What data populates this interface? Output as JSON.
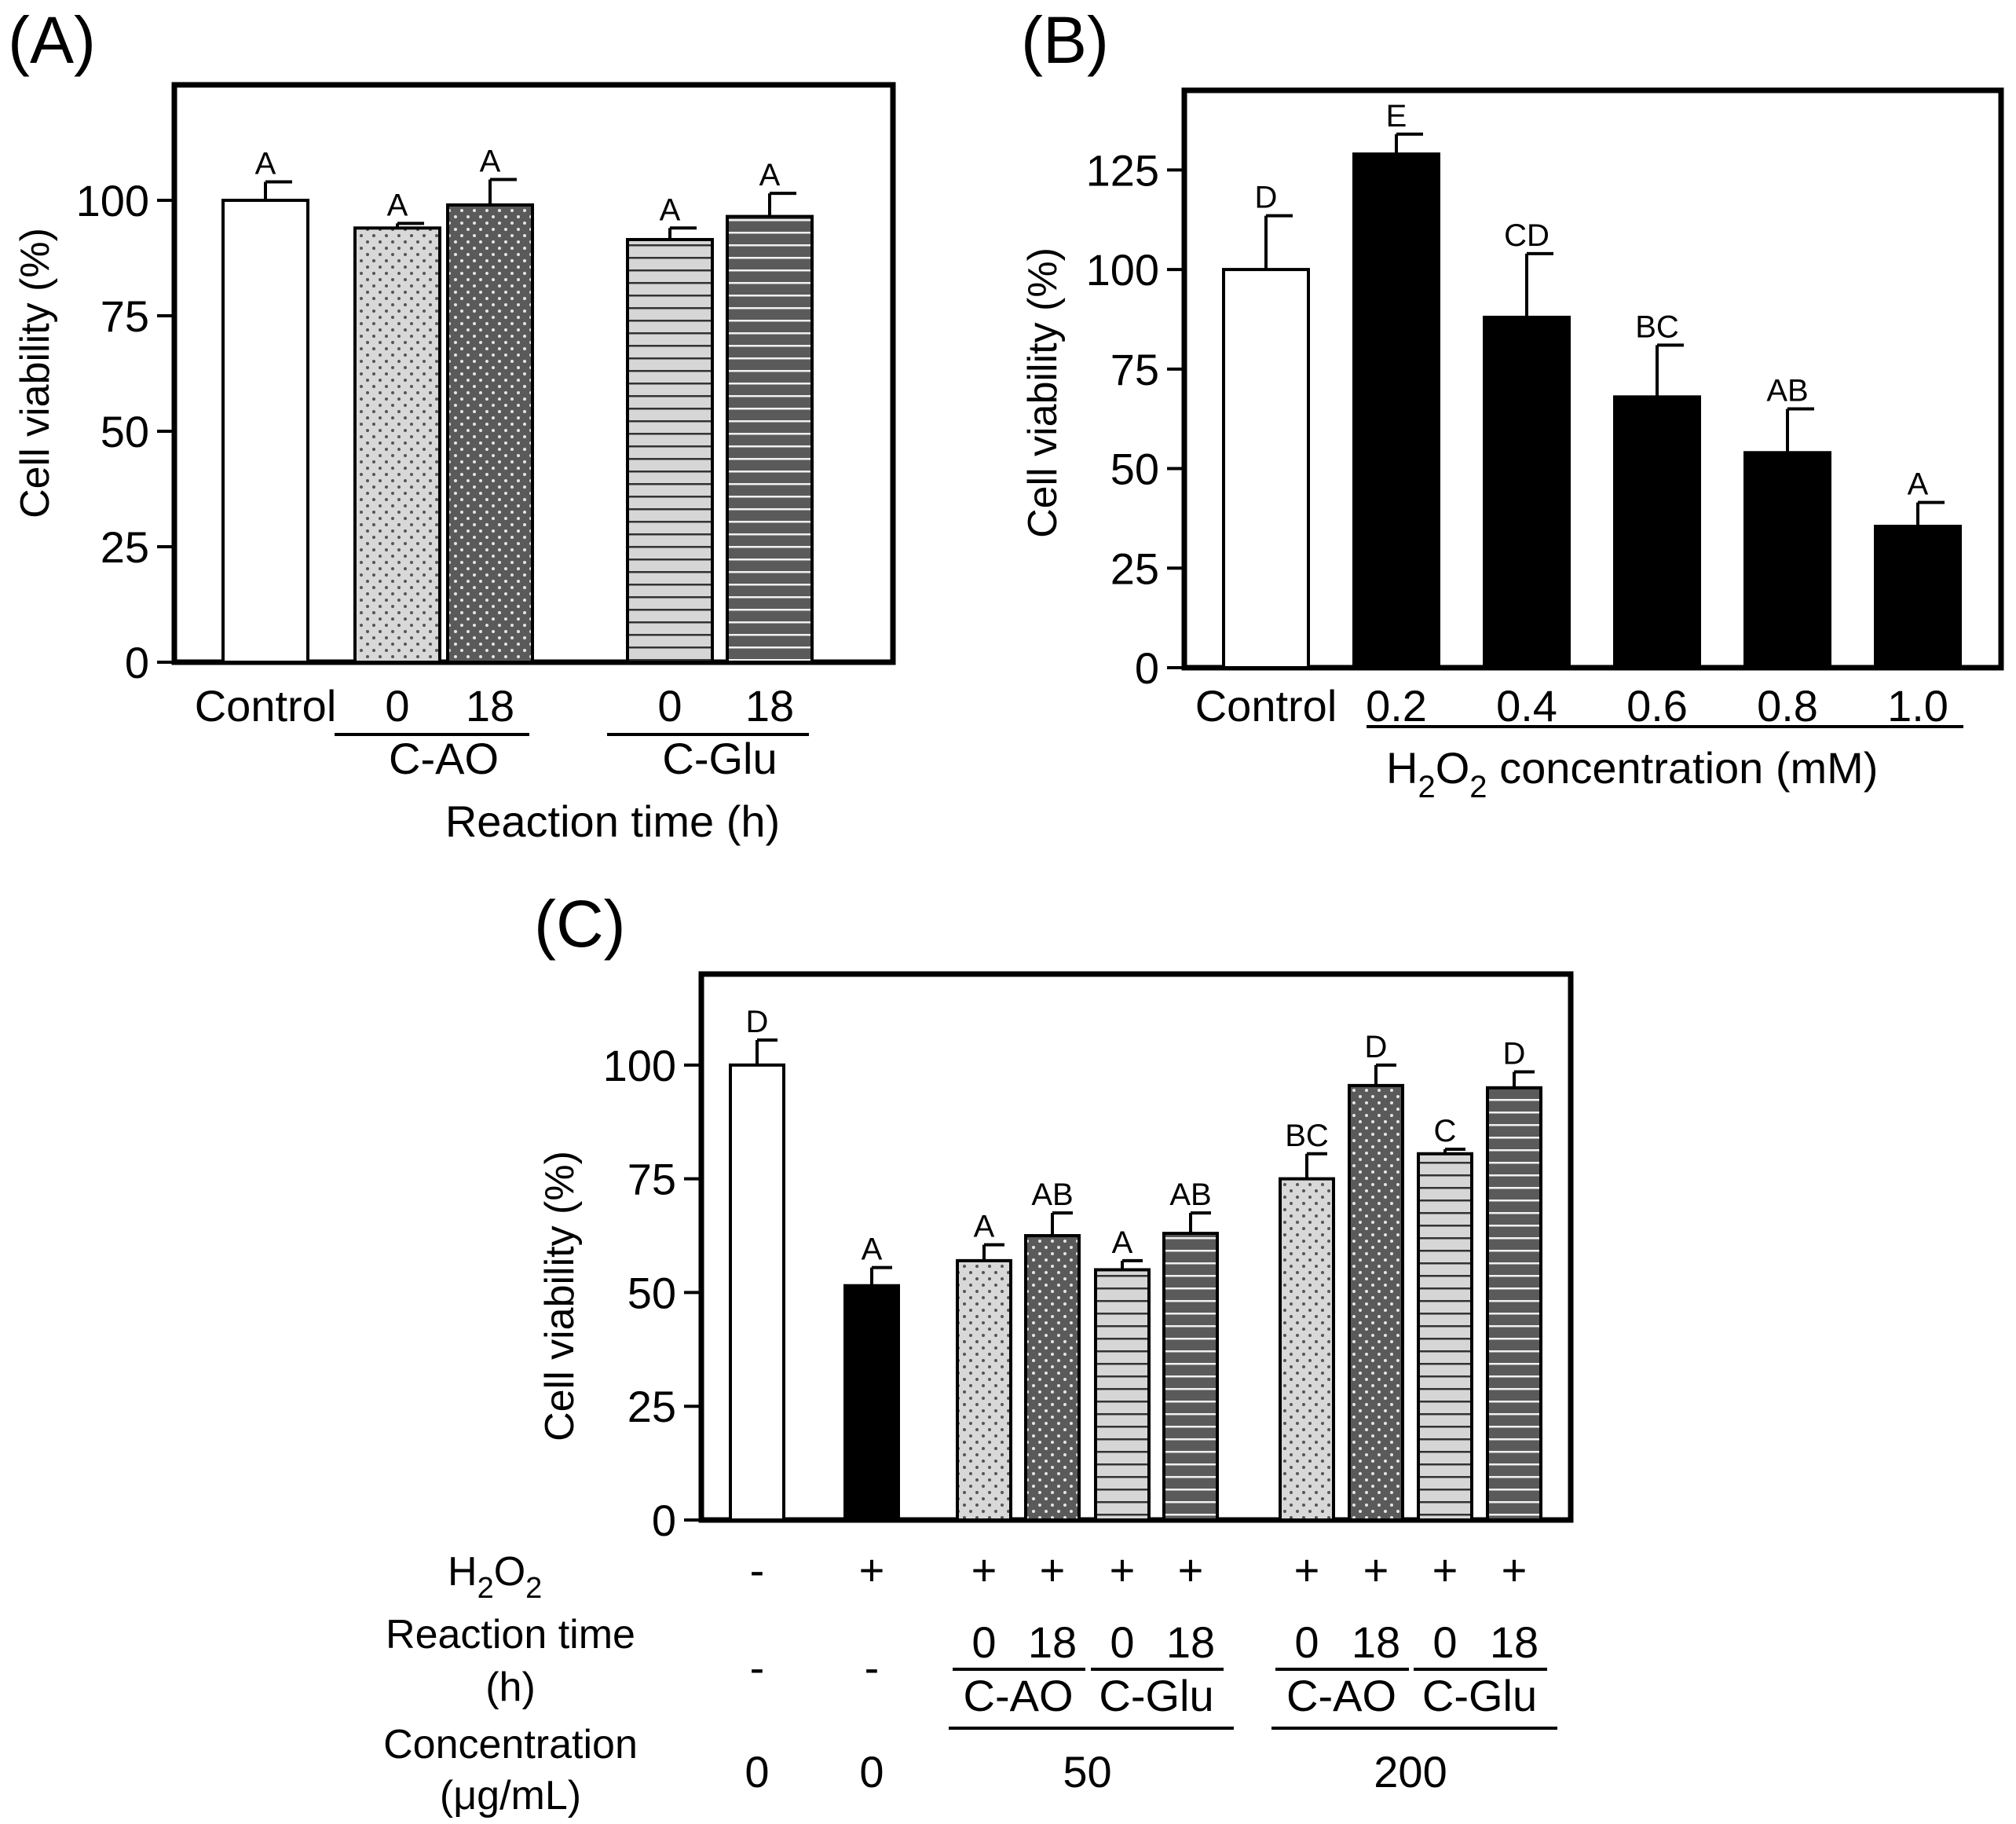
{
  "colors": {
    "white": "#ffffff",
    "black": "#000000",
    "light_gray": "#d4d4d4",
    "dark_gray": "#5d5d5d"
  },
  "chart_data": [
    {
      "type": "bar",
      "panel": "(A)",
      "ylabel": "Cell viability (%)",
      "xlabel": "Reaction time (h)",
      "ylim": [
        0,
        125
      ],
      "yticks": [
        0,
        25,
        50,
        75,
        100
      ],
      "categories": [
        "Control",
        "0",
        "18",
        "0",
        "18"
      ],
      "groups": [
        {
          "label": "C-AO",
          "members": [
            1,
            2
          ]
        },
        {
          "label": "C-Glu",
          "members": [
            3,
            4
          ]
        }
      ],
      "values": [
        100,
        94,
        99,
        91.5,
        96.5
      ],
      "errors": [
        4,
        1,
        5.5,
        2.5,
        5
      ],
      "letters": [
        "A",
        "A",
        "A",
        "A",
        "A"
      ],
      "patterns": [
        "white",
        "light-dots",
        "dark-dots",
        "light-lines",
        "dark-lines"
      ]
    },
    {
      "type": "bar",
      "panel": "(B)",
      "ylabel": "Cell viability (%)",
      "xlabel_prefix": "H",
      "xlabel_sub1": "2",
      "xlabel_mid": "O",
      "xlabel_sub2": "2",
      "xlabel_suffix": " concentration (mM)",
      "ylim": [
        0,
        145
      ],
      "yticks": [
        0,
        25,
        50,
        75,
        100,
        125
      ],
      "categories": [
        "Control",
        "0.2",
        "0.4",
        "0.6",
        "0.8",
        "1.0"
      ],
      "values": [
        100,
        129,
        88,
        68,
        54,
        35.5
      ],
      "errors": [
        13.5,
        5,
        16,
        13,
        11,
        6
      ],
      "letters": [
        "D",
        "E",
        "CD",
        "BC",
        "AB",
        "A"
      ],
      "patterns": [
        "white",
        "black",
        "black",
        "black",
        "black",
        "black"
      ]
    },
    {
      "type": "bar",
      "panel": "(C)",
      "ylabel": "Cell viability (%)",
      "ylim": [
        0,
        120
      ],
      "yticks": [
        0,
        25,
        50,
        75,
        100
      ],
      "values": [
        100,
        51.5,
        57,
        62.5,
        55,
        63,
        75,
        95.5,
        80.5,
        95
      ],
      "errors": [
        5.5,
        4,
        3.5,
        5,
        2,
        4.5,
        5.5,
        4.5,
        1,
        3.5
      ],
      "letters": [
        "D",
        "A",
        "A",
        "AB",
        "A",
        "AB",
        "BC",
        "D",
        "C",
        "D"
      ],
      "patterns": [
        "white",
        "black",
        "light-dots",
        "dark-dots",
        "light-lines",
        "dark-lines",
        "light-dots",
        "dark-dots",
        "light-lines",
        "dark-lines"
      ],
      "rows": {
        "h2o2_label_prefix": "H",
        "h2o2_sub1": "2",
        "h2o2_mid": "O",
        "h2o2_sub2": "2",
        "h2o2": [
          "-",
          "+",
          "+",
          "+",
          "+",
          "+",
          "+",
          "+",
          "+",
          "+"
        ],
        "reaction_label_1": "Reaction time",
        "reaction_label_2": "(h)",
        "reaction": [
          "-",
          "-",
          "0",
          "18",
          "0",
          "18",
          "0",
          "18",
          "0",
          "18"
        ],
        "reaction_groups": [
          "C-AO",
          "C-Glu",
          "C-AO",
          "C-Glu"
        ],
        "conc_label_1": "Concentration",
        "conc_label_2": "(μg/mL)",
        "conc_single": [
          "0",
          "0"
        ],
        "conc_groups": [
          "50",
          "200"
        ]
      }
    }
  ]
}
